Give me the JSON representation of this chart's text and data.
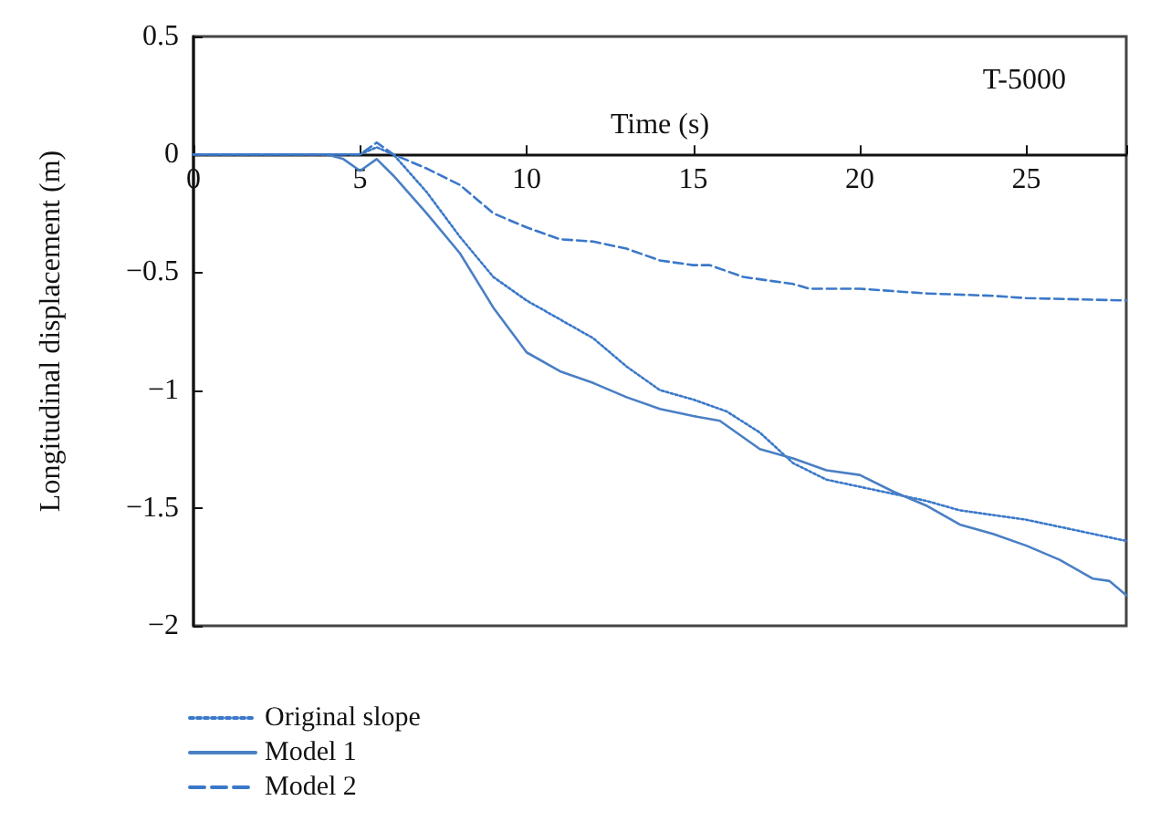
{
  "chart_data": {
    "type": "line",
    "xlabel": "Time (s)",
    "ylabel": "Longitudinal displacement (m)",
    "annotations": [
      "T-5000"
    ],
    "xlim": [
      0,
      28
    ],
    "xticks": [
      0,
      5,
      10,
      15,
      20,
      25
    ],
    "ylim": [
      -2,
      0.5
    ],
    "yticks": [
      {
        "value": -2,
        "label": "−2"
      },
      {
        "value": -1.5,
        "label": "−1.5"
      },
      {
        "value": -1,
        "label": "−1"
      },
      {
        "value": -0.5,
        "label": "−0.5"
      },
      0,
      0.5
    ],
    "grid": false,
    "legend": "bottom left",
    "marker": "none",
    "series": [
      {
        "name": "Original slope",
        "color": "#3a78c9",
        "line_style": "dotted",
        "x": [
          0,
          2,
          4,
          5,
          5.5,
          6,
          7,
          8,
          9,
          10,
          11,
          12,
          13,
          14,
          15,
          16,
          17,
          18,
          19,
          20,
          21,
          22,
          23,
          24,
          25,
          26,
          27,
          28
        ],
        "values": [
          0,
          0,
          0,
          0,
          0.03,
          0,
          -0.16,
          -0.35,
          -0.52,
          -0.62,
          -0.7,
          -0.78,
          -0.9,
          -1.0,
          -1.04,
          -1.09,
          -1.18,
          -1.31,
          -1.38,
          -1.41,
          -1.44,
          -1.47,
          -1.51,
          -1.53,
          -1.55,
          -1.58,
          -1.61,
          -1.64
        ]
      },
      {
        "name": "Model 1",
        "color": "#4a7fc4",
        "line_style": "solid",
        "x": [
          0,
          2,
          4,
          4.5,
          5,
          5.5,
          6,
          7,
          8,
          9,
          10,
          11,
          12,
          13,
          14,
          15,
          15.8,
          17,
          18,
          19,
          20,
          21,
          22,
          23,
          24,
          25,
          26,
          27,
          27.5,
          28
        ],
        "values": [
          0,
          0,
          0,
          -0.02,
          -0.07,
          -0.02,
          -0.09,
          -0.25,
          -0.42,
          -0.65,
          -0.84,
          -0.92,
          -0.97,
          -1.03,
          -1.08,
          -1.11,
          -1.13,
          -1.25,
          -1.29,
          -1.34,
          -1.36,
          -1.43,
          -1.49,
          -1.57,
          -1.61,
          -1.66,
          -1.72,
          -1.8,
          -1.81,
          -1.87
        ]
      },
      {
        "name": "Model 2",
        "color": "#3a78c9",
        "line_style": "dashed",
        "x": [
          0,
          2,
          4,
          5,
          5.5,
          6,
          7,
          8,
          9,
          10,
          11,
          12,
          13,
          14,
          15,
          15.5,
          16.5,
          18,
          18.5,
          20,
          22,
          24,
          25,
          28
        ],
        "values": [
          0,
          0,
          0,
          0,
          0.05,
          0,
          -0.06,
          -0.13,
          -0.25,
          -0.31,
          -0.36,
          -0.37,
          -0.4,
          -0.45,
          -0.47,
          -0.47,
          -0.52,
          -0.55,
          -0.57,
          -0.57,
          -0.59,
          -0.6,
          -0.61,
          -0.62
        ]
      }
    ]
  }
}
